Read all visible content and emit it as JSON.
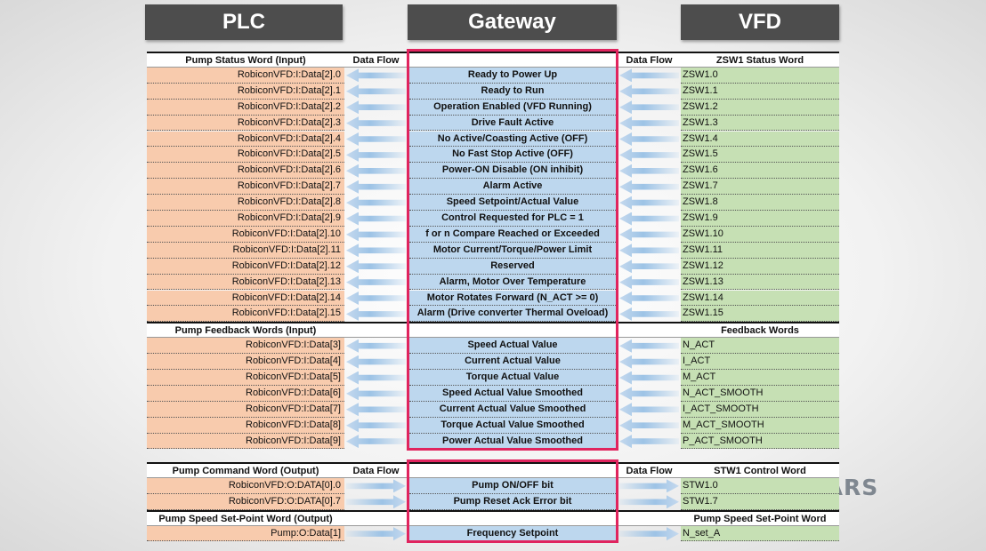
{
  "headers": {
    "plc": "PLC",
    "gateway": "Gateway",
    "vfd": "VFD"
  },
  "logo": "REALPARS",
  "tables": [
    {
      "sections": [
        {
          "plc_header": "Pump Status Word (Input)",
          "flow_left": "Data Flow",
          "flow_right": "Data Flow",
          "vfd_header": "ZSW1 Status Word",
          "arrows": "left",
          "rows": [
            [
              "RobiconVFD:I:Data[2].0",
              "Ready to Power Up",
              "ZSW1.0"
            ],
            [
              "RobiconVFD:I:Data[2].1",
              "Ready to Run",
              "ZSW1.1"
            ],
            [
              "RobiconVFD:I:Data[2].2",
              "Operation Enabled (VFD Running)",
              "ZSW1.2"
            ],
            [
              "RobiconVFD:I:Data[2].3",
              "Drive Fault Active",
              "ZSW1.3"
            ],
            [
              "RobiconVFD:I:Data[2].4",
              "No Active/Coasting Active (OFF)",
              "ZSW1.4"
            ],
            [
              "RobiconVFD:I:Data[2].5",
              "No Fast Stop Active (OFF)",
              "ZSW1.5"
            ],
            [
              "RobiconVFD:I:Data[2].6",
              "Power-ON Disable (ON inhibit)",
              "ZSW1.6"
            ],
            [
              "RobiconVFD:I:Data[2].7",
              "Alarm Active",
              "ZSW1.7"
            ],
            [
              "RobiconVFD:I:Data[2].8",
              "Speed Setpoint/Actual Value",
              "ZSW1.8"
            ],
            [
              "RobiconVFD:I:Data[2].9",
              "Control Requested for PLC = 1",
              "ZSW1.9"
            ],
            [
              "RobiconVFD:I:Data[2].10",
              "f or n Compare Reached or Exceeded",
              "ZSW1.10"
            ],
            [
              "RobiconVFD:I:Data[2].11",
              "Motor Current/Torque/Power Limit",
              "ZSW1.11"
            ],
            [
              "RobiconVFD:I:Data[2].12",
              "Reserved",
              "ZSW1.12"
            ],
            [
              "RobiconVFD:I:Data[2].13",
              "Alarm, Motor Over Temperature",
              "ZSW1.13"
            ],
            [
              "RobiconVFD:I:Data[2].14",
              "Motor Rotates Forward (N_ACT >= 0)",
              "ZSW1.14"
            ],
            [
              "RobiconVFD:I:Data[2].15",
              "Alarm (Drive converter Thermal Oveload)",
              "ZSW1.15"
            ]
          ]
        },
        {
          "plc_header": "Pump Feedback Words (Input)",
          "vfd_header": "Feedback Words",
          "arrows": "left",
          "rows": [
            [
              "RobiconVFD:I:Data[3]",
              "Speed Actual Value",
              "N_ACT"
            ],
            [
              "RobiconVFD:I:Data[4]",
              "Current Actual Value",
              "I_ACT"
            ],
            [
              "RobiconVFD:I:Data[5]",
              "Torque Actual Value",
              "M_ACT"
            ],
            [
              "RobiconVFD:I:Data[6]",
              "Speed Actual Value Smoothed",
              "N_ACT_SMOOTH"
            ],
            [
              "RobiconVFD:I:Data[7]",
              "Current Actual Value Smoothed",
              "I_ACT_SMOOTH"
            ],
            [
              "RobiconVFD:I:Data[8]",
              "Torque Actual Value Smoothed",
              "M_ACT_SMOOTH"
            ],
            [
              "RobiconVFD:I:Data[9]",
              "Power Actual Value Smoothed",
              "P_ACT_SMOOTH"
            ]
          ]
        }
      ]
    },
    {
      "sections": [
        {
          "plc_header": "Pump Command Word (Output)",
          "flow_left": "Data Flow",
          "flow_right": "Data Flow",
          "vfd_header": "STW1 Control Word",
          "arrows": "right",
          "rows": [
            [
              "RobiconVFD:O:DATA[0].0",
              "Pump ON/OFF bit",
              "STW1.0"
            ],
            [
              "RobiconVFD:O:DATA[0].7",
              "Pump Reset Ack Error bit",
              "STW1.7"
            ]
          ]
        },
        {
          "plc_header": "Pump Speed Set-Point Word (Output)",
          "vfd_header": "Pump Speed Set-Point Word",
          "arrows": "right",
          "rows": [
            [
              "Pump:O:Data[1]",
              "Frequency Setpoint",
              "N_set_A"
            ]
          ]
        }
      ]
    }
  ]
}
